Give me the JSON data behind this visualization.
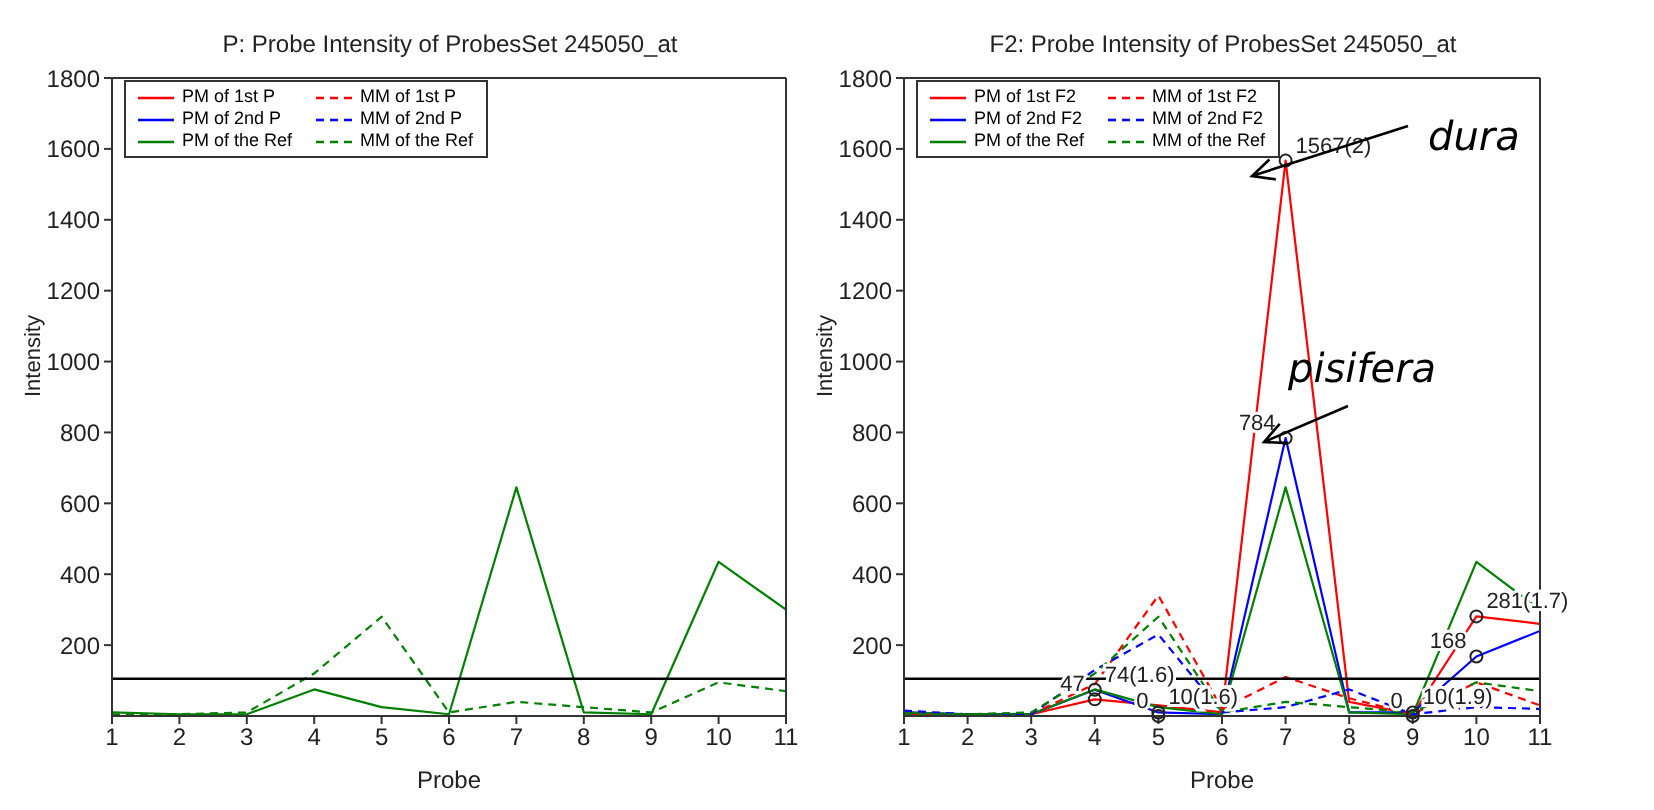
{
  "chart_data": [
    {
      "type": "line",
      "title": "P: Probe Intensity of ProbesSet  245050_at",
      "xlabel": "Probe",
      "ylabel": "Intensity",
      "x": [
        1,
        2,
        3,
        4,
        5,
        6,
        7,
        8,
        9,
        10,
        11
      ],
      "xlim": [
        1,
        11
      ],
      "xticks": [
        1,
        2,
        3,
        4,
        5,
        6,
        7,
        8,
        9,
        10,
        11
      ],
      "ylim": [
        0,
        1800
      ],
      "yticks": [
        200,
        400,
        600,
        800,
        1000,
        1200,
        1400,
        1600,
        1800
      ],
      "legend": "top left",
      "marker": "none",
      "grid": false,
      "series": [
        {
          "name": "PM of 1st P",
          "color": "#ff0000",
          "line_style": "solid",
          "values": [
            null,
            null,
            null,
            null,
            null,
            null,
            null,
            null,
            null,
            null,
            null
          ]
        },
        {
          "name": "PM of 2nd P",
          "color": "#0000ff",
          "line_style": "solid",
          "values": [
            null,
            null,
            null,
            null,
            null,
            null,
            null,
            null,
            null,
            null,
            null
          ]
        },
        {
          "name": "PM of the Ref",
          "color": "#008000",
          "line_style": "solid",
          "values": [
            10,
            5,
            5,
            75,
            25,
            5,
            645,
            10,
            5,
            435,
            300
          ]
        },
        {
          "name": "MM of 1st P",
          "color": "#ff0000",
          "line_style": "dashed",
          "values": [
            null,
            null,
            null,
            null,
            null,
            null,
            null,
            null,
            null,
            null,
            null
          ]
        },
        {
          "name": "MM of 2nd P",
          "color": "#0000ff",
          "line_style": "dashed",
          "values": [
            null,
            null,
            null,
            null,
            null,
            null,
            null,
            null,
            null,
            null,
            null
          ]
        },
        {
          "name": "MM of the Ref",
          "color": "#008000",
          "line_style": "dashed",
          "values": [
            5,
            5,
            10,
            120,
            280,
            10,
            40,
            25,
            10,
            95,
            70
          ]
        }
      ],
      "ref_lines": [
        {
          "axis": "y",
          "value": 105,
          "color": "#000000"
        }
      ]
    },
    {
      "type": "line",
      "title": "F2: Probe Intensity of ProbesSet  245050_at",
      "xlabel": "Probe",
      "ylabel": "Intensity",
      "x": [
        1,
        2,
        3,
        4,
        5,
        6,
        7,
        8,
        9,
        10,
        11
      ],
      "xlim": [
        1,
        11
      ],
      "xticks": [
        1,
        2,
        3,
        4,
        5,
        6,
        7,
        8,
        9,
        10,
        11
      ],
      "ylim": [
        0,
        1800
      ],
      "yticks": [
        200,
        400,
        600,
        800,
        1000,
        1200,
        1400,
        1600,
        1800
      ],
      "legend": "top left",
      "marker": "none",
      "grid": false,
      "series": [
        {
          "name": "PM of 1st F2",
          "color": "#ff0000",
          "line_style": "solid",
          "values": [
            5,
            5,
            5,
            47,
            30,
            10,
            1567,
            40,
            5,
            281,
            260
          ]
        },
        {
          "name": "PM of 2nd F2",
          "color": "#0000ff",
          "line_style": "solid",
          "values": [
            10,
            5,
            5,
            74,
            10,
            5,
            784,
            10,
            10,
            168,
            240
          ]
        },
        {
          "name": "PM of the Ref",
          "color": "#008000",
          "line_style": "solid",
          "values": [
            10,
            5,
            5,
            75,
            25,
            5,
            645,
            10,
            5,
            435,
            300
          ]
        },
        {
          "name": "MM of 1st F2",
          "color": "#ff0000",
          "line_style": "dashed",
          "values": [
            5,
            5,
            5,
            90,
            340,
            20,
            110,
            50,
            5,
            95,
            30
          ]
        },
        {
          "name": "MM of 2nd F2",
          "color": "#0000ff",
          "line_style": "dashed",
          "values": [
            15,
            5,
            5,
            130,
            230,
            10,
            25,
            75,
            5,
            25,
            20
          ]
        },
        {
          "name": "MM of the Ref",
          "color": "#008000",
          "line_style": "dashed",
          "values": [
            5,
            5,
            10,
            120,
            280,
            10,
            40,
            25,
            10,
            95,
            70
          ]
        }
      ],
      "ref_lines": [
        {
          "axis": "y",
          "value": 105,
          "color": "#000000"
        }
      ],
      "annotations": [
        "dura",
        "pisifera",
        {
          "text": "1567(2)",
          "x": 7,
          "y": 1567
        },
        {
          "text": "784",
          "x": 7,
          "y": 784
        },
        {
          "text": "281(1.7)",
          "x": 10,
          "y": 281
        },
        {
          "text": "168",
          "x": 10,
          "y": 168
        },
        {
          "text": "74(1.6)",
          "x": 4,
          "y": 74
        },
        {
          "text": "47",
          "x": 4,
          "y": 47
        },
        {
          "text": "10(1.6)",
          "x": 5,
          "y": 10
        },
        {
          "text": "0",
          "x": 5,
          "y": 0
        },
        {
          "text": "10(1.9)",
          "x": 9,
          "y": 10
        },
        {
          "text": "0",
          "x": 9,
          "y": 0
        }
      ]
    }
  ]
}
